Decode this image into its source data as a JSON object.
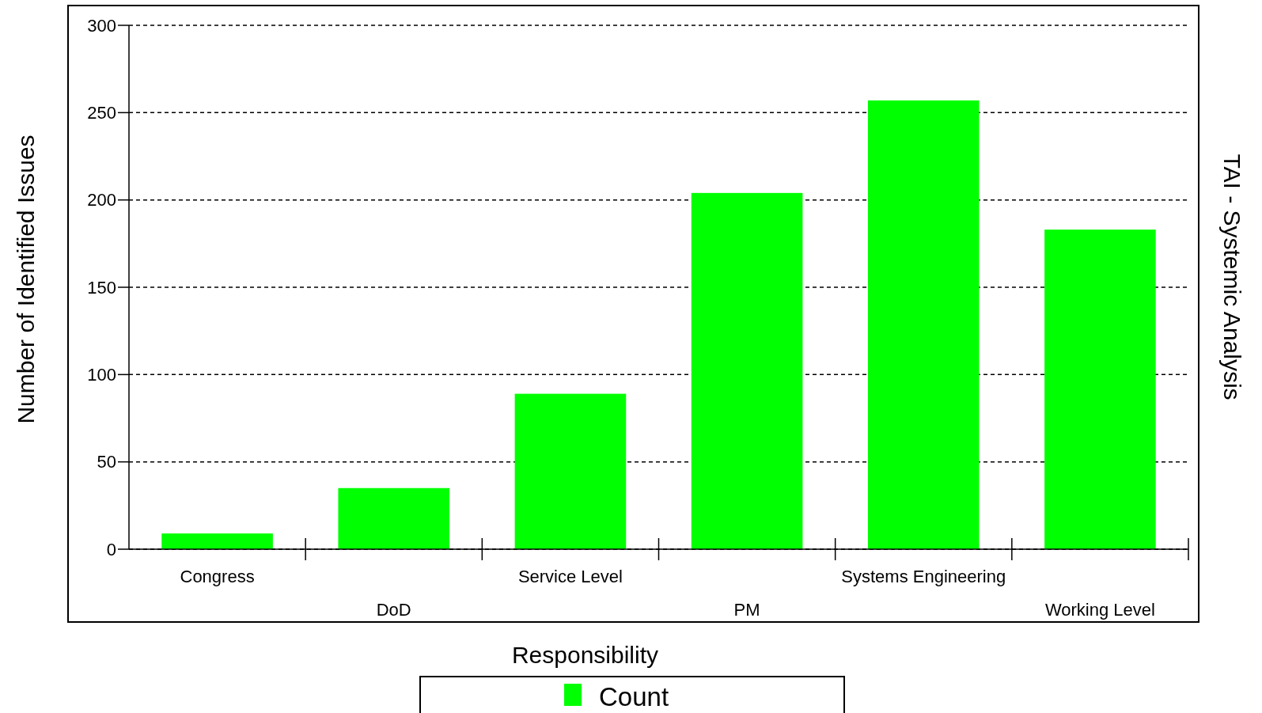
{
  "chart_data": {
    "type": "bar",
    "title": "TAI - Systemic Analysis",
    "xlabel": "Responsibility",
    "ylabel": "Number of Identified Issues",
    "categories": [
      "Congress",
      "DoD",
      "Service Level",
      "PM",
      "Systems Engineering",
      "Working Level"
    ],
    "series": [
      {
        "name": "Count",
        "color": "#00ff00",
        "values": [
          9,
          35,
          89,
          204,
          257,
          183
        ]
      }
    ],
    "ylim": [
      0,
      300
    ],
    "yticks": [
      0,
      50,
      100,
      150,
      200,
      250,
      300
    ],
    "grid": "y",
    "legend": "bottom"
  }
}
